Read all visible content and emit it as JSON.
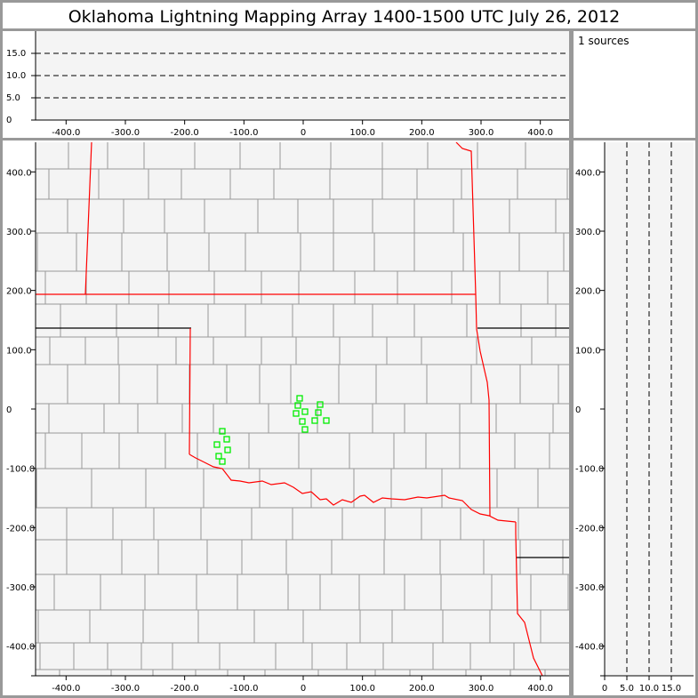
{
  "title": "Oklahoma Lightning Mapping Array   1400-1500 UTC  July 26, 2012",
  "source_count_label": "1 sources",
  "colors": {
    "source": "#00ee00",
    "state_border": "#ff0000",
    "county_border": "#999999",
    "plot_bg": "#f4f4f4",
    "frame": "#999999"
  },
  "chart_data": [
    {
      "type": "scatter",
      "panel": "altitude-vs-east-west",
      "xlim": [
        -450,
        450
      ],
      "ylim": [
        0,
        20
      ],
      "xticks": [
        "-400.0",
        "-300.0",
        "-200.0",
        "-100.0",
        "0",
        "100.0",
        "200.0",
        "300.0",
        "400.0"
      ],
      "xtick_values": [
        -400,
        -300,
        -200,
        -100,
        0,
        100,
        200,
        300,
        400
      ],
      "yticks": [
        "0",
        "5.0",
        "10.0",
        "15.0"
      ],
      "ytick_values": [
        0,
        5,
        10,
        15
      ],
      "grid": "dashed horizontal at 5, 10, 15"
    },
    {
      "type": "scatter",
      "panel": "plan-view-map",
      "xlim": [
        -450,
        450
      ],
      "ylim": [
        -450,
        450
      ],
      "xticks": [
        "-400.0",
        "-300.0",
        "-200.0",
        "-100.0",
        "0",
        "100.0",
        "200.0",
        "300.0",
        "400.0"
      ],
      "xtick_values": [
        -400,
        -300,
        -200,
        -100,
        0,
        100,
        200,
        300,
        400
      ],
      "yticks": [
        "400.0",
        "300.0",
        "200.0",
        "100.0",
        "0",
        "-100.0",
        "-200.0",
        "-300.0",
        "-400.0"
      ],
      "ytick_values": [
        400,
        300,
        200,
        100,
        0,
        -100,
        -200,
        -300,
        -400
      ],
      "marker": "open-square",
      "points": [
        [
          -6,
          18
        ],
        [
          -9,
          6
        ],
        [
          -12,
          -7.5
        ],
        [
          3,
          -4.5
        ],
        [
          -1.5,
          -21
        ],
        [
          3,
          -34.5
        ],
        [
          19.5,
          -19.5
        ],
        [
          28.5,
          7.5
        ],
        [
          25.5,
          -6
        ],
        [
          39,
          -19.5
        ],
        [
          -136.5,
          -37.5
        ],
        [
          -129,
          -51
        ],
        [
          -145.5,
          -60
        ],
        [
          -127.5,
          -69
        ],
        [
          -142.5,
          -79.5
        ],
        [
          -136.5,
          -88.5
        ]
      ]
    },
    {
      "type": "scatter",
      "panel": "north-south-vs-altitude",
      "xlim": [
        0,
        20
      ],
      "ylim": [
        -450,
        450
      ],
      "xticks": [
        "0",
        "5.0",
        "10.0",
        "15.0"
      ],
      "xtick_values": [
        0,
        5,
        10,
        15
      ],
      "yticks": [
        "400.0",
        "300.0",
        "200.0",
        "100.0",
        "0",
        "-100.0",
        "-200.0",
        "-300.0",
        "-400.0"
      ],
      "ytick_values": [
        400,
        300,
        200,
        100,
        0,
        -100,
        -200,
        -300,
        -400
      ],
      "grid": "dashed vertical at 5, 10, 15"
    }
  ]
}
